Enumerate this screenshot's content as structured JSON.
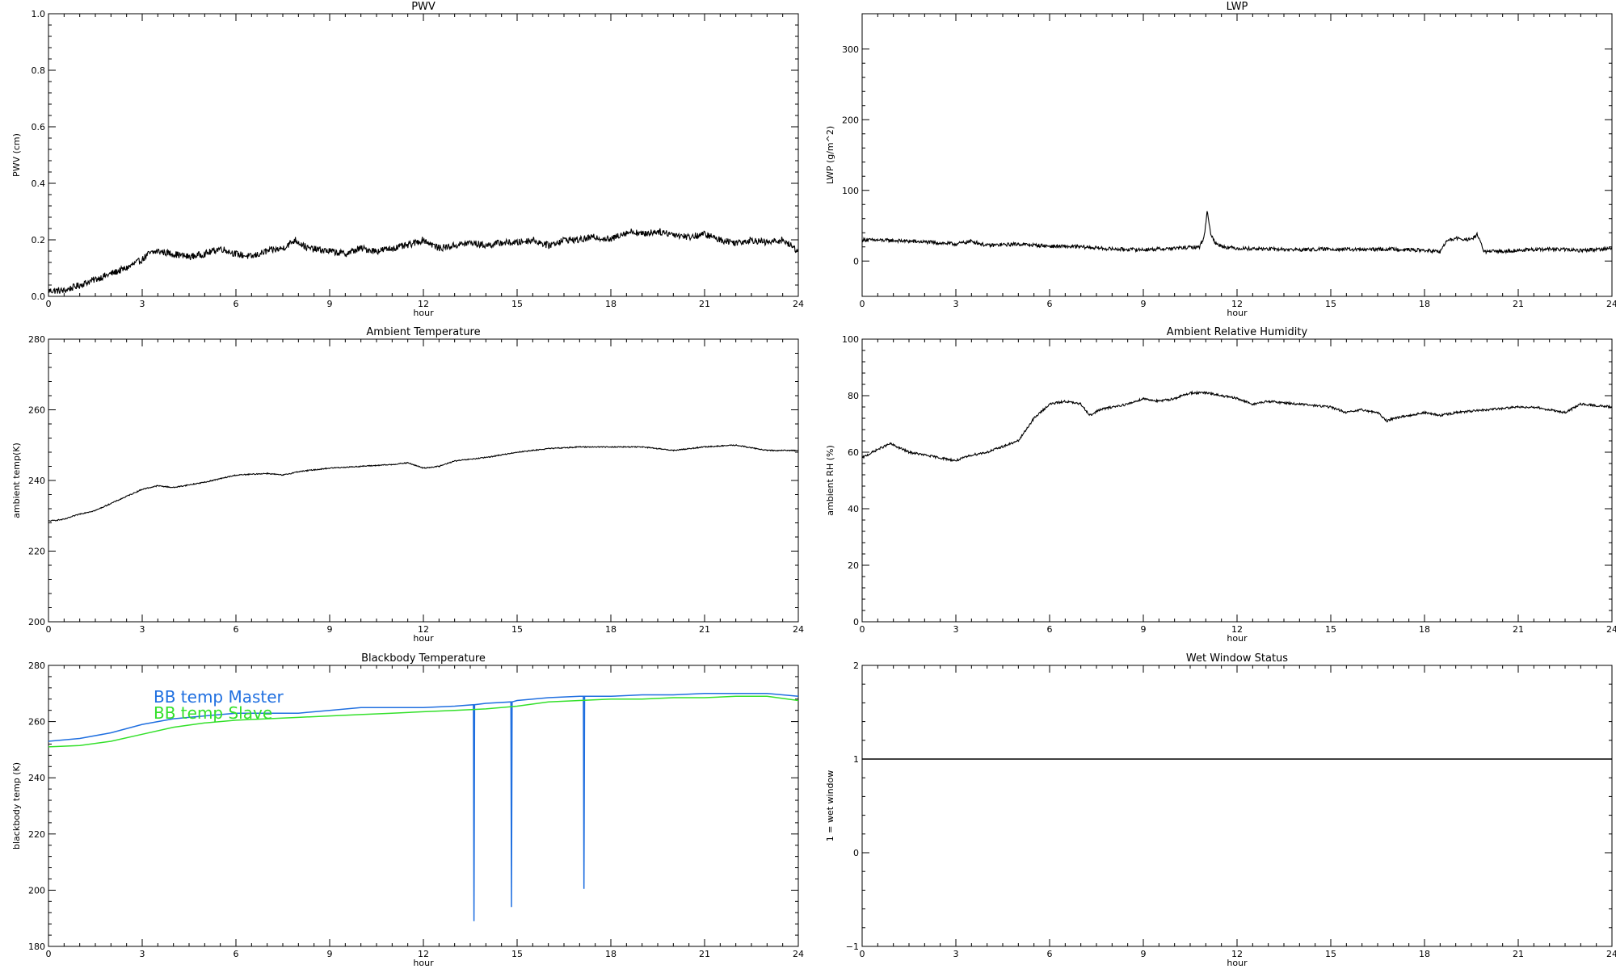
{
  "figure": {
    "panels": [
      {
        "id": "pwv",
        "title": "PWV",
        "xlabel": "hour",
        "ylabel": "PWV (cm)",
        "xticks": [
          "0",
          "3",
          "6",
          "9",
          "12",
          "15",
          "18",
          "21",
          "24"
        ],
        "yticks": [
          "0.0",
          "0.2",
          "0.4",
          "0.6",
          "0.8",
          "1.0"
        ]
      },
      {
        "id": "lwp",
        "title": "LWP",
        "xlabel": "hour",
        "ylabel": "LWP (g/m^2)",
        "xticks": [
          "0",
          "3",
          "6",
          "9",
          "12",
          "15",
          "18",
          "21",
          "24"
        ],
        "yticks": [
          "0",
          "100",
          "200",
          "300"
        ]
      },
      {
        "id": "ambient-temperature",
        "title": "Ambient Temperature",
        "xlabel": "hour",
        "ylabel": "ambient temp(K)",
        "xticks": [
          "0",
          "3",
          "6",
          "9",
          "12",
          "15",
          "18",
          "21",
          "24"
        ],
        "yticks": [
          "200",
          "220",
          "240",
          "260",
          "280"
        ]
      },
      {
        "id": "ambient-rh",
        "title": "Ambient Relative Humidity",
        "xlabel": "hour",
        "ylabel": "ambient RH (%)",
        "xticks": [
          "0",
          "3",
          "6",
          "9",
          "12",
          "15",
          "18",
          "21",
          "24"
        ],
        "yticks": [
          "0",
          "20",
          "40",
          "60",
          "80",
          "100"
        ]
      },
      {
        "id": "blackbody-temperature",
        "title": "Blackbody Temperature",
        "xlabel": "hour",
        "ylabel": "blackbody temp (K)",
        "xticks": [
          "0",
          "3",
          "6",
          "9",
          "12",
          "15",
          "18",
          "21",
          "24"
        ],
        "yticks": [
          "180",
          "200",
          "220",
          "240",
          "260",
          "280"
        ],
        "legend": [
          "BB temp Master",
          "BB temp Slave"
        ]
      },
      {
        "id": "wet-window",
        "title": "Wet Window Status",
        "xlabel": "hour",
        "ylabel": "1 = wet window",
        "xticks": [
          "0",
          "3",
          "6",
          "9",
          "12",
          "15",
          "18",
          "21",
          "24"
        ],
        "yticks": [
          "−1",
          "0",
          "1",
          "2"
        ]
      }
    ]
  },
  "chart_data": [
    {
      "type": "line",
      "title": "PWV",
      "xlabel": "hour",
      "ylabel": "PWV (cm)",
      "xlim": [
        0,
        24
      ],
      "ylim": [
        0,
        1.0
      ],
      "noise": 0.012,
      "series": [
        {
          "color": "#000000",
          "x": [
            0,
            0.5,
            1,
            1.5,
            2,
            2.5,
            3,
            3.2,
            3.5,
            4,
            4.5,
            5,
            5.5,
            6,
            6.5,
            7,
            7.5,
            7.9,
            8.3,
            9,
            9.5,
            10,
            10.5,
            11,
            11.5,
            12,
            12.5,
            13,
            13.5,
            14,
            14.5,
            15,
            15.5,
            16,
            16.5,
            17,
            17.5,
            18,
            18.3,
            18.7,
            19,
            19.5,
            20,
            20.5,
            21,
            21.5,
            22,
            22.5,
            23,
            23.5,
            24
          ],
          "y": [
            0.02,
            0.02,
            0.04,
            0.06,
            0.08,
            0.1,
            0.13,
            0.15,
            0.16,
            0.15,
            0.14,
            0.15,
            0.17,
            0.15,
            0.14,
            0.16,
            0.17,
            0.2,
            0.17,
            0.16,
            0.15,
            0.17,
            0.16,
            0.17,
            0.18,
            0.2,
            0.17,
            0.18,
            0.19,
            0.18,
            0.19,
            0.19,
            0.2,
            0.18,
            0.2,
            0.2,
            0.21,
            0.2,
            0.22,
            0.23,
            0.22,
            0.23,
            0.22,
            0.21,
            0.22,
            0.2,
            0.19,
            0.2,
            0.19,
            0.2,
            0.16
          ]
        }
      ]
    },
    {
      "type": "line",
      "title": "LWP",
      "xlabel": "hour",
      "ylabel": "LWP (g/m^2)",
      "xlim": [
        0,
        24
      ],
      "ylim": [
        -50,
        350
      ],
      "noise": 2.5,
      "series": [
        {
          "color": "#000000",
          "x": [
            0,
            1,
            2,
            3,
            3.5,
            4,
            5,
            6,
            7,
            8,
            9,
            10,
            10.8,
            10.95,
            11.05,
            11.15,
            11.3,
            11.6,
            12,
            13,
            14,
            15,
            16,
            17,
            18,
            18.5,
            18.7,
            19,
            19.5,
            19.7,
            19.9,
            21,
            22,
            23,
            24
          ],
          "y": [
            30,
            29,
            27,
            24,
            28,
            22,
            24,
            21,
            20,
            17,
            16,
            18,
            20,
            35,
            72,
            40,
            25,
            20,
            18,
            17,
            16,
            17,
            16,
            17,
            15,
            13,
            28,
            32,
            30,
            38,
            13,
            15,
            17,
            15,
            18
          ]
        }
      ]
    },
    {
      "type": "line",
      "title": "Ambient Temperature",
      "xlabel": "hour",
      "ylabel": "ambient temp(K)",
      "xlim": [
        0,
        24
      ],
      "ylim": [
        200,
        280
      ],
      "noise": 0.15,
      "series": [
        {
          "color": "#000000",
          "x": [
            0,
            0.5,
            1,
            1.5,
            2,
            2.5,
            3,
            3.5,
            4,
            5,
            6,
            7,
            7.5,
            8,
            9,
            10,
            11,
            11.5,
            12,
            12.5,
            13,
            14,
            15,
            16,
            17,
            18,
            19,
            20,
            21,
            22,
            23,
            24
          ],
          "y": [
            228.5,
            229,
            230.5,
            231.5,
            233.5,
            235.5,
            237.5,
            238.5,
            238,
            239.5,
            241.5,
            242,
            241.5,
            242.5,
            243.5,
            244,
            244.5,
            245,
            243.5,
            244,
            245.5,
            246.5,
            248,
            249,
            249.5,
            249.5,
            249.5,
            248.5,
            249.5,
            250,
            248.5,
            248.5
          ]
        }
      ]
    },
    {
      "type": "line",
      "title": "Ambient Relative Humidity",
      "xlabel": "hour",
      "ylabel": "ambient RH (%)",
      "xlim": [
        0,
        24
      ],
      "ylim": [
        0,
        100
      ],
      "noise": 0.4,
      "series": [
        {
          "color": "#000000",
          "x": [
            0,
            0.5,
            0.9,
            1.5,
            2,
            2.5,
            3,
            3.5,
            4,
            4.5,
            5,
            5.5,
            6,
            6.5,
            7,
            7.3,
            7.6,
            8,
            8.5,
            9,
            9.5,
            10,
            10.5,
            11,
            11.5,
            12,
            12.5,
            13,
            14,
            15,
            15.5,
            16,
            16.5,
            16.8,
            17,
            17.5,
            18,
            18.5,
            19,
            20,
            21,
            21.5,
            22,
            22.5,
            23,
            24
          ],
          "y": [
            58,
            61,
            63,
            60,
            59,
            58,
            57,
            59,
            60,
            62,
            64,
            72,
            77,
            78,
            77,
            73,
            75,
            76,
            77,
            79,
            78,
            79,
            81,
            81,
            80,
            79,
            77,
            78,
            77,
            76,
            74,
            75,
            74,
            71,
            72,
            73,
            74,
            73,
            74,
            75,
            76,
            76,
            75,
            74,
            77,
            76
          ]
        }
      ]
    },
    {
      "type": "line",
      "title": "Blackbody Temperature",
      "xlabel": "hour",
      "ylabel": "blackbody temp (K)",
      "xlim": [
        0,
        24
      ],
      "ylim": [
        180,
        280
      ],
      "noise": 0,
      "legend": "top-left",
      "series": [
        {
          "name": "BB temp Master",
          "color": "#1f6fe0",
          "x": [
            0,
            1,
            2,
            3,
            4,
            5,
            6,
            7,
            8,
            9,
            10,
            11,
            12,
            13,
            13.6,
            13.62,
            13.64,
            14,
            14.8,
            14.82,
            14.84,
            15,
            16,
            17,
            17.12,
            17.14,
            17.16,
            18,
            19,
            20,
            21,
            22,
            23,
            24
          ],
          "y": [
            253,
            254,
            256,
            259,
            261,
            262,
            263,
            263,
            263,
            264,
            265,
            265,
            265,
            265.5,
            266,
            189,
            266,
            266.5,
            267,
            194,
            267,
            267.5,
            268.5,
            269,
            269,
            200.5,
            269,
            269,
            269.5,
            269.5,
            270,
            270,
            270,
            269
          ]
        },
        {
          "name": "BB temp Slave",
          "color": "#33e02a",
          "x": [
            0,
            1,
            2,
            3,
            4,
            5,
            6,
            7,
            8,
            9,
            10,
            11,
            12,
            13,
            14,
            15,
            16,
            17,
            18,
            19,
            20,
            21,
            22,
            23,
            24
          ],
          "y": [
            251,
            251.5,
            253,
            255.5,
            258,
            259.5,
            260.5,
            261,
            261.5,
            262,
            262.5,
            263,
            263.5,
            264,
            264.5,
            265.5,
            267,
            267.5,
            268,
            268,
            268.5,
            268.5,
            269,
            269,
            267.5
          ]
        }
      ]
    },
    {
      "type": "line",
      "title": "Wet Window Status",
      "xlabel": "hour",
      "ylabel": "1 = wet window",
      "xlim": [
        0,
        24
      ],
      "ylim": [
        -1,
        2
      ],
      "noise": 0,
      "series": [
        {
          "color": "#000000",
          "x": [
            0,
            24
          ],
          "y": [
            1,
            1
          ]
        }
      ]
    }
  ]
}
